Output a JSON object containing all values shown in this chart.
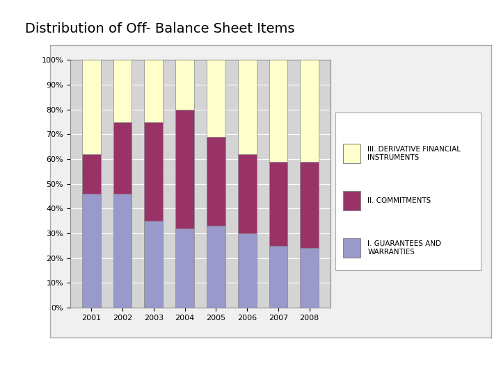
{
  "title": "Distribution of Off- Balance Sheet Items",
  "years": [
    "2001",
    "2002",
    "2003",
    "2004",
    "2005",
    "2006",
    "2007",
    "2008"
  ],
  "guarantees": [
    46,
    46,
    35,
    32,
    33,
    30,
    25,
    24
  ],
  "commitments": [
    16,
    29,
    40,
    48,
    36,
    32,
    34,
    35
  ],
  "derivatives": [
    38,
    25,
    25,
    20,
    31,
    38,
    41,
    41
  ],
  "color_guarantees": "#9999CC",
  "color_commitments": "#993366",
  "color_derivatives": "#FFFFCC",
  "color_plot_bg": "#D4D4D4",
  "color_chart_outer_bg": "#F0F0F0",
  "ylim": [
    0,
    100
  ],
  "title_fontsize": 14,
  "tick_fontsize": 8,
  "legend_fontsize": 7.5
}
